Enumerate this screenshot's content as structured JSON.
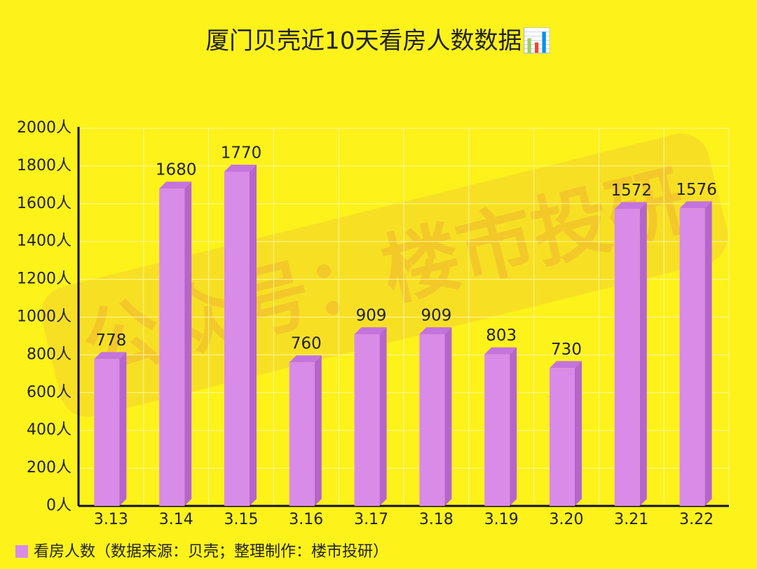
{
  "chart_data": {
    "type": "bar3d",
    "title": "厦门贝壳近10天看房人数数据📊",
    "watermark": "公众号：楼市投研",
    "categories": [
      "3.13",
      "3.14",
      "3.15",
      "3.16",
      "3.17",
      "3.18",
      "3.19",
      "3.20",
      "3.21",
      "3.22"
    ],
    "series": [
      {
        "name": "看房人数（数据来源：贝壳；整理制作：楼市投研）",
        "color": "#d98be8",
        "values": [
          778,
          1680,
          1770,
          760,
          909,
          909,
          803,
          730,
          1572,
          1576
        ]
      }
    ],
    "ylim": [
      0,
      2000
    ],
    "yticks": [
      {
        "value": 0,
        "label": "0人"
      },
      {
        "value": 200,
        "label": "200人"
      },
      {
        "value": 400,
        "label": "400人"
      },
      {
        "value": 600,
        "label": "600人"
      },
      {
        "value": 800,
        "label": "800人"
      },
      {
        "value": 1000,
        "label": "1000人"
      },
      {
        "value": 1200,
        "label": "1200人"
      },
      {
        "value": 1400,
        "label": "1400人"
      },
      {
        "value": 1600,
        "label": "1600人"
      },
      {
        "value": 1800,
        "label": "1800人"
      },
      {
        "value": 2000,
        "label": "2000人"
      }
    ],
    "grid": true,
    "legend": "bottom-left"
  }
}
